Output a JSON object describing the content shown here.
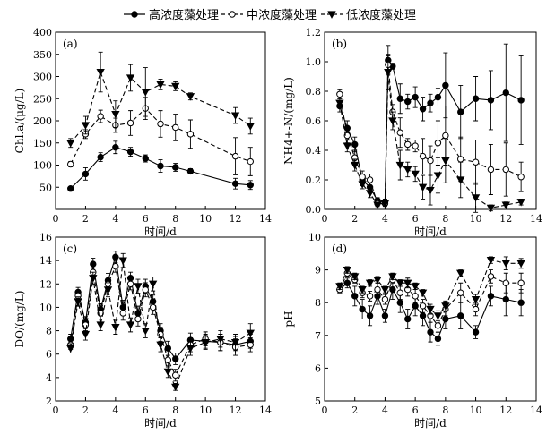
{
  "legend": [
    {
      "name": "高浓度藻处理",
      "marker": "filled-circle",
      "dash": "solid"
    },
    {
      "name": "中浓度藻处理",
      "marker": "open-circle",
      "dash": "dashed"
    },
    {
      "name": "低浓度藻处理",
      "marker": "filled-triangle-down",
      "dash": "dashed"
    }
  ],
  "colors": {
    "line": "#000000",
    "marker_fill_dark": "#000000",
    "marker_fill_light": "#ffffff"
  },
  "chart_data": [
    {
      "type": "line",
      "panel": "(a)",
      "xlabel": "时间/d",
      "ylabel": "Chl.a/(μg/L)",
      "xlim": [
        0,
        14
      ],
      "ylim": [
        0,
        400
      ],
      "xticks": [
        0,
        2,
        4,
        6,
        8,
        10,
        12,
        14
      ],
      "yticks": [
        50,
        100,
        150,
        200,
        250,
        300,
        350,
        400
      ],
      "series": [
        {
          "name": "高浓度藻处理",
          "x": [
            1,
            2,
            3,
            4,
            5,
            6,
            7,
            8,
            9,
            12,
            13
          ],
          "y": [
            47,
            80,
            118,
            140,
            130,
            115,
            98,
            95,
            86,
            58,
            55
          ],
          "err": [
            4,
            14,
            10,
            14,
            10,
            8,
            14,
            9,
            6,
            12,
            10
          ]
        },
        {
          "name": "中浓度藻处理",
          "x": [
            1,
            2,
            3,
            4,
            5,
            6,
            7,
            8,
            9,
            12,
            13
          ],
          "y": [
            102,
            170,
            210,
            190,
            195,
            228,
            193,
            185,
            170,
            120,
            108
          ],
          "err": [
            6,
            10,
            14,
            16,
            28,
            25,
            30,
            30,
            32,
            42,
            32
          ]
        },
        {
          "name": "低浓度藻处理",
          "x": [
            1,
            2,
            3,
            4,
            5,
            6,
            7,
            8,
            9,
            12,
            13
          ],
          "y": [
            150,
            190,
            310,
            215,
            297,
            265,
            282,
            278,
            255,
            212,
            188
          ],
          "err": [
            10,
            20,
            45,
            30,
            30,
            55,
            12,
            10,
            8,
            18,
            18
          ]
        }
      ]
    },
    {
      "type": "line",
      "panel": "(b)",
      "xlabel": "时间/d",
      "ylabel": "NH4+-N/(mg/L)",
      "xlim": [
        0,
        14
      ],
      "ylim": [
        0,
        1.2
      ],
      "xticks": [
        0,
        2,
        4,
        6,
        8,
        10,
        12,
        14
      ],
      "yticks": [
        0,
        0.2,
        0.4,
        0.6,
        0.8,
        1.0,
        1.2
      ],
      "series": [
        {
          "name": "高浓度藻处理",
          "x": [
            1,
            1.5,
            2,
            2.5,
            3,
            3.5,
            4,
            4.2,
            4.5,
            5,
            5.5,
            6,
            6.5,
            7,
            7.5,
            8,
            9,
            10,
            11,
            12,
            13
          ],
          "y": [
            0.7,
            0.55,
            0.44,
            0.2,
            0.15,
            0.06,
            0.05,
            1.01,
            0.97,
            0.75,
            0.73,
            0.76,
            0.68,
            0.72,
            0.76,
            0.84,
            0.66,
            0.75,
            0.74,
            0.79,
            0.74
          ],
          "err": [
            0.04,
            0.05,
            0.05,
            0.04,
            0.04,
            0.02,
            0.02,
            0.1,
            0.02,
            0.1,
            0.05,
            0.07,
            0.08,
            0.06,
            0.06,
            0.22,
            0.18,
            0.15,
            0.2,
            0.33,
            0.3
          ]
        },
        {
          "name": "中浓度藻处理",
          "x": [
            1,
            1.5,
            2,
            2.5,
            3,
            3.5,
            4,
            4.2,
            4.5,
            5,
            5.5,
            6,
            6.5,
            7,
            7.5,
            8,
            9,
            10,
            11,
            12,
            13
          ],
          "y": [
            0.78,
            0.5,
            0.35,
            0.22,
            0.2,
            0.04,
            0.04,
            0.98,
            0.66,
            0.52,
            0.44,
            0.43,
            0.36,
            0.33,
            0.45,
            0.5,
            0.34,
            0.32,
            0.27,
            0.27,
            0.22
          ],
          "err": [
            0.03,
            0.05,
            0.05,
            0.04,
            0.04,
            0.02,
            0.02,
            0.06,
            0.05,
            0.1,
            0.04,
            0.04,
            0.12,
            0.1,
            0.15,
            0.2,
            0.15,
            0.15,
            0.17,
            0.18,
            0.1
          ]
        },
        {
          "name": "低浓度藻处理",
          "x": [
            1,
            1.5,
            2,
            2.5,
            3,
            3.5,
            4,
            4.2,
            4.5,
            5,
            5.5,
            6,
            6.5,
            7,
            7.5,
            8,
            9,
            10,
            11,
            12,
            13
          ],
          "y": [
            0.72,
            0.43,
            0.3,
            0.17,
            0.11,
            0.03,
            0.04,
            0.93,
            0.6,
            0.3,
            0.27,
            0.24,
            0.15,
            0.13,
            0.23,
            0.33,
            0.2,
            0.08,
            0.01,
            0.03,
            0.05
          ],
          "err": [
            0.03,
            0.04,
            0.04,
            0.03,
            0.03,
            0.01,
            0.01,
            0.12,
            0.06,
            0.1,
            0.05,
            0.05,
            0.08,
            0.1,
            0.12,
            0.15,
            0.12,
            0.1,
            0.02,
            0.02,
            0.02
          ]
        }
      ]
    },
    {
      "type": "line",
      "panel": "(c)",
      "xlabel": "时间/d",
      "ylabel": "DO/(mg/L)",
      "xlim": [
        0,
        14
      ],
      "ylim": [
        2,
        16
      ],
      "xticks": [
        0,
        2,
        4,
        6,
        8,
        10,
        12,
        14
      ],
      "yticks": [
        2,
        4,
        6,
        8,
        10,
        12,
        14,
        16
      ],
      "series": [
        {
          "name": "高浓度藻处理",
          "x": [
            1,
            1.5,
            2,
            2.5,
            3,
            3.5,
            4,
            4.5,
            5,
            5.5,
            6,
            6.5,
            7,
            7.5,
            8,
            9,
            10,
            11,
            12,
            13
          ],
          "y": [
            7.3,
            11.3,
            8.7,
            13.7,
            9.8,
            12.3,
            14.3,
            10.0,
            12.5,
            9.5,
            11.8,
            10.5,
            8.0,
            6.5,
            5.6,
            7.2,
            7.1,
            7.0,
            6.8,
            7.1
          ],
          "err": [
            0.4,
            0.4,
            0.5,
            0.5,
            0.5,
            0.6,
            0.5,
            0.6,
            0.5,
            0.6,
            0.6,
            0.6,
            0.6,
            0.6,
            0.5,
            0.6,
            0.6,
            0.7,
            0.7,
            0.6
          ]
        },
        {
          "name": "中浓度藻处理",
          "x": [
            1,
            1.5,
            2,
            2.5,
            3,
            3.5,
            4,
            4.5,
            5,
            5.5,
            6,
            6.5,
            7,
            7.5,
            8,
            9,
            10,
            11,
            12,
            13
          ],
          "y": [
            6.8,
            11.0,
            8.5,
            13.0,
            9.5,
            12.0,
            13.5,
            9.5,
            12.0,
            9.0,
            11.5,
            10.0,
            7.7,
            5.5,
            4.2,
            6.8,
            7.3,
            7.0,
            6.6,
            6.8
          ],
          "err": [
            0.4,
            0.4,
            0.5,
            0.5,
            0.5,
            0.6,
            0.5,
            0.6,
            0.5,
            0.6,
            0.6,
            0.6,
            0.6,
            0.6,
            0.5,
            0.6,
            0.6,
            0.7,
            0.7,
            0.6
          ]
        },
        {
          "name": "低浓度藻处理",
          "x": [
            1,
            1.5,
            2,
            2.5,
            3,
            3.5,
            4,
            4.5,
            5,
            5.5,
            6,
            6.5,
            7,
            7.5,
            8,
            9,
            10,
            11,
            12,
            13
          ],
          "y": [
            6.5,
            10.5,
            7.7,
            12.5,
            8.5,
            11.5,
            8.3,
            14.0,
            8.5,
            11.8,
            8.0,
            12.0,
            6.8,
            4.5,
            3.2,
            6.5,
            7.0,
            7.3,
            7.0,
            7.8
          ],
          "err": [
            0.4,
            0.4,
            0.5,
            0.5,
            0.5,
            0.6,
            0.6,
            0.6,
            0.6,
            0.6,
            0.6,
            0.6,
            0.6,
            0.5,
            0.3,
            0.6,
            0.6,
            0.7,
            0.7,
            0.8
          ]
        }
      ]
    },
    {
      "type": "line",
      "panel": "(d)",
      "xlabel": "时间/d",
      "ylabel": "pH",
      "xlim": [
        0,
        14
      ],
      "ylim": [
        5,
        10
      ],
      "xticks": [
        0,
        2,
        4,
        6,
        8,
        10,
        12,
        14
      ],
      "yticks": [
        5,
        6,
        7,
        8,
        9,
        10
      ],
      "series": [
        {
          "name": "高浓度藻处理",
          "x": [
            1,
            1.5,
            2,
            2.5,
            3,
            3.5,
            4,
            4.5,
            5,
            5.5,
            6,
            6.5,
            7,
            7.5,
            8,
            9,
            10,
            11,
            12,
            13
          ],
          "y": [
            8.4,
            8.6,
            8.2,
            7.8,
            7.6,
            8.2,
            7.6,
            8.4,
            8.0,
            7.5,
            7.9,
            7.6,
            7.1,
            6.9,
            7.5,
            7.6,
            7.1,
            8.2,
            8.1,
            8.0
          ],
          "err": [
            0.1,
            0.15,
            0.3,
            0.3,
            0.3,
            0.25,
            0.2,
            0.3,
            0.3,
            0.3,
            0.3,
            0.3,
            0.3,
            0.2,
            0.3,
            0.4,
            0.2,
            0.3,
            0.5,
            0.4
          ]
        },
        {
          "name": "中浓度藻处理",
          "x": [
            1,
            1.5,
            2,
            2.5,
            3,
            3.5,
            4,
            4.5,
            5,
            5.5,
            6,
            6.5,
            7,
            7.5,
            8,
            9,
            10,
            11,
            12,
            13
          ],
          "y": [
            8.4,
            8.9,
            8.7,
            8.3,
            8.2,
            8.4,
            8.1,
            8.7,
            8.3,
            8.4,
            8.2,
            7.9,
            7.6,
            7.3,
            7.8,
            8.3,
            7.8,
            8.8,
            8.6,
            8.6
          ],
          "err": [
            0.1,
            0.1,
            0.1,
            0.15,
            0.15,
            0.2,
            0.15,
            0.1,
            0.2,
            0.2,
            0.2,
            0.2,
            0.2,
            0.2,
            0.2,
            0.3,
            0.2,
            0.2,
            0.3,
            0.3
          ]
        },
        {
          "name": "低浓度藻处理",
          "x": [
            1,
            1.5,
            2,
            2.5,
            3,
            3.5,
            4,
            4.5,
            5,
            5.5,
            6,
            6.5,
            7,
            7.5,
            8,
            9,
            10,
            11,
            12,
            13
          ],
          "y": [
            8.5,
            9.0,
            8.8,
            8.4,
            8.6,
            8.7,
            8.4,
            8.8,
            8.6,
            8.6,
            8.5,
            8.3,
            7.8,
            7.6,
            7.9,
            8.9,
            8.1,
            9.3,
            9.2,
            9.2
          ],
          "err": [
            0.1,
            0.1,
            0.1,
            0.1,
            0.1,
            0.1,
            0.1,
            0.1,
            0.1,
            0.15,
            0.1,
            0.1,
            0.15,
            0.15,
            0.15,
            0.1,
            0.15,
            0.1,
            0.2,
            0.15
          ]
        }
      ]
    }
  ]
}
